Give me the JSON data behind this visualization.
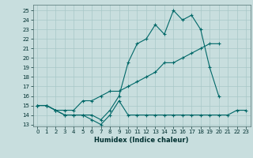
{
  "xlabel": "Humidex (Indice chaleur)",
  "bg_color": "#c8dede",
  "line_color": "#006868",
  "grid_color": "#a8c8c8",
  "xlim": [
    -0.5,
    23.5
  ],
  "ylim": [
    12.8,
    25.6
  ],
  "yticks": [
    13,
    14,
    15,
    16,
    17,
    18,
    19,
    20,
    21,
    22,
    23,
    24,
    25
  ],
  "xticks": [
    0,
    1,
    2,
    3,
    4,
    5,
    6,
    7,
    8,
    9,
    10,
    11,
    12,
    13,
    14,
    15,
    16,
    17,
    18,
    19,
    20,
    21,
    22,
    23
  ],
  "line1_x": [
    0,
    1,
    2,
    3,
    4,
    5,
    6,
    7,
    8,
    9,
    10,
    11,
    12,
    13,
    14,
    15,
    16,
    17,
    18,
    19,
    20,
    21,
    22,
    23
  ],
  "line1_y": [
    15.0,
    15.0,
    14.5,
    14.0,
    14.0,
    14.0,
    13.5,
    13.0,
    14.0,
    15.5,
    14.0,
    14.0,
    14.0,
    14.0,
    14.0,
    14.0,
    14.0,
    14.0,
    14.0,
    14.0,
    14.0,
    14.0,
    14.5,
    14.5
  ],
  "line2_x": [
    0,
    1,
    2,
    3,
    4,
    5,
    6,
    7,
    8,
    9,
    10,
    11,
    12,
    13,
    14,
    15,
    16,
    17,
    18,
    19,
    20,
    21,
    22,
    23
  ],
  "line2_y": [
    15.0,
    15.0,
    14.5,
    14.0,
    14.0,
    14.0,
    14.0,
    13.5,
    14.5,
    16.0,
    19.5,
    21.5,
    22.0,
    23.5,
    22.5,
    25.0,
    24.0,
    24.5,
    23.0,
    19.0,
    16.0,
    null,
    null,
    null
  ],
  "line3_x": [
    0,
    1,
    2,
    3,
    4,
    5,
    6,
    7,
    8,
    9,
    10,
    11,
    12,
    13,
    14,
    15,
    16,
    17,
    18,
    19,
    20,
    21,
    22,
    23
  ],
  "line3_y": [
    15.0,
    15.0,
    14.5,
    14.5,
    14.5,
    15.5,
    15.5,
    16.0,
    16.5,
    16.5,
    17.0,
    17.5,
    18.0,
    18.5,
    19.5,
    19.5,
    20.0,
    20.5,
    21.0,
    21.5,
    21.5,
    null,
    null,
    null
  ]
}
